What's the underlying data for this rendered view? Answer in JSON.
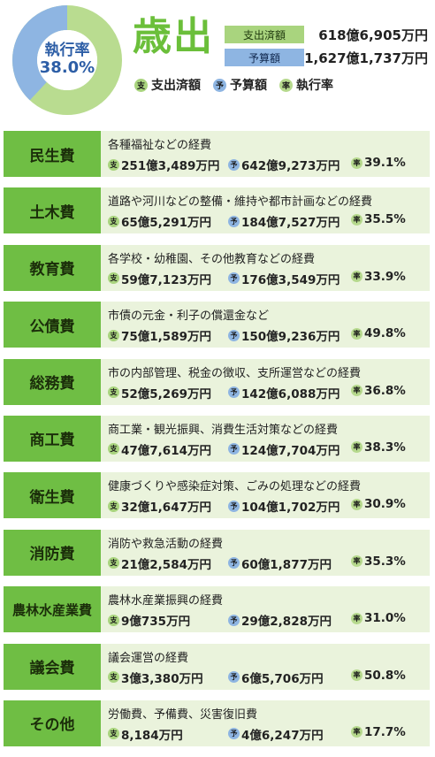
{
  "summary": {
    "donut_label": "執行率",
    "rate_value": "38.0%",
    "rate_fraction": 0.38,
    "title": "歳出",
    "spent_tag": "支出済額",
    "spent_value": "618億6,905万円",
    "budget_tag": "予算額",
    "budget_value": "1,627億1,737万円",
    "legend": [
      {
        "badge": "支",
        "label": "支出済額"
      },
      {
        "badge": "予",
        "label": "予算額"
      },
      {
        "badge": "率",
        "label": "執行率"
      }
    ]
  },
  "badges": {
    "spent": "支",
    "budget": "予",
    "rate": "率"
  },
  "colors": {
    "green": "#6fbe44",
    "light_green": "#a9d47e",
    "blue": "#8eb5e2",
    "row_bg": "#eaf3dc",
    "donut_blue": "#2d5ea6"
  },
  "categories": [
    {
      "name": "民生費",
      "desc": "各種福祉などの経費",
      "spent": "251億3,489万円",
      "budget": "642億9,273万円",
      "rate": "39.1%"
    },
    {
      "name": "土木費",
      "desc": "道路や河川などの整備・維持や都市計画などの経費",
      "spent": "65億5,291万円",
      "budget": "184億7,527万円",
      "rate": "35.5%"
    },
    {
      "name": "教育費",
      "desc": "各学校・幼稚園、その他教育などの経費",
      "spent": "59億7,123万円",
      "budget": "176億3,549万円",
      "rate": "33.9%"
    },
    {
      "name": "公債費",
      "desc": "市債の元金・利子の償還金など",
      "spent": "75億1,589万円",
      "budget": "150億9,236万円",
      "rate": "49.8%"
    },
    {
      "name": "総務費",
      "desc": "市の内部管理、税金の徴収、支所運営などの経費",
      "spent": "52億5,269万円",
      "budget": "142億6,088万円",
      "rate": "36.8%"
    },
    {
      "name": "商工費",
      "desc": "商工業・観光振興、消費生活対策などの経費",
      "spent": "47億7,614万円",
      "budget": "124億7,704万円",
      "rate": "38.3%"
    },
    {
      "name": "衛生費",
      "desc": "健康づくりや感染症対策、ごみの処理などの経費",
      "spent": "32億1,647万円",
      "budget": "104億1,702万円",
      "rate": "30.9%"
    },
    {
      "name": "消防費",
      "desc": "消防や救急活動の経費",
      "spent": "21億2,584万円",
      "budget": "60億1,877万円",
      "rate": "35.3%"
    },
    {
      "name": "農林水産業費",
      "desc": "農林水産業振興の経費",
      "spent": "9億735万円",
      "budget": "29億2,828万円",
      "rate": "31.0%"
    },
    {
      "name": "議会費",
      "desc": "議会運営の経費",
      "spent": "3億3,380万円",
      "budget": "6億5,706万円",
      "rate": "50.8%"
    },
    {
      "name": "その他",
      "desc": "労働費、予備費、災害復旧費",
      "spent": "8,184万円",
      "budget": "4億6,247万円",
      "rate": "17.7%"
    }
  ]
}
